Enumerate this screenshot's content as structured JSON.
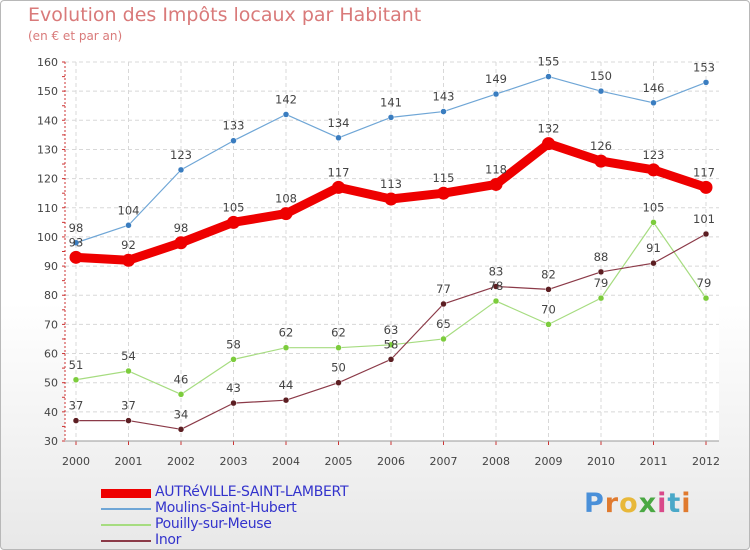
{
  "page": {
    "title": "Evolution des Impôts locaux par Habitant",
    "subtitle": "(en € et par an)"
  },
  "brand": {
    "letters": [
      {
        "char": "P",
        "color": "#4a90d9"
      },
      {
        "char": "r",
        "color": "#e07a2e"
      },
      {
        "char": "o",
        "color": "#e8b83a"
      },
      {
        "char": "x",
        "color": "#4aa843"
      },
      {
        "char": "i",
        "color": "#d94a8a"
      },
      {
        "char": "t",
        "color": "#4aa8c8"
      },
      {
        "char": "i",
        "color": "#e07a2e"
      }
    ]
  },
  "chart_data": {
    "type": "line",
    "x": [
      "2000",
      "2001",
      "2002",
      "2003",
      "2004",
      "2005",
      "2006",
      "2007",
      "2008",
      "2009",
      "2010",
      "2011",
      "2012"
    ],
    "ylim": [
      30,
      160
    ],
    "yticks": [
      "30",
      "40",
      "50",
      "60",
      "70",
      "80",
      "90",
      "100",
      "110",
      "120",
      "130",
      "140",
      "150",
      "160"
    ],
    "grid": true,
    "legend_position": "bottom-left",
    "series": [
      {
        "name": "AUTRéVILLE-SAINT-LAMBERT",
        "color": "#ee0000",
        "width": 9,
        "values": [
          93,
          92,
          98,
          105,
          108,
          117,
          113,
          115,
          118,
          132,
          126,
          123,
          117
        ]
      },
      {
        "name": "Moulins-Saint-Hubert",
        "color": "#6fa6d6",
        "marker": "#3a7dc0",
        "width": 1.2,
        "values": [
          98,
          104,
          123,
          133,
          142,
          134,
          141,
          143,
          149,
          155,
          150,
          146,
          153
        ]
      },
      {
        "name": "Pouilly-sur-Meuse",
        "color": "#a6dc80",
        "marker": "#7ccc3c",
        "width": 1.2,
        "values": [
          51,
          54,
          46,
          58,
          62,
          62,
          63,
          65,
          78,
          70,
          79,
          105,
          79
        ]
      },
      {
        "name": "Inor",
        "color": "#8b3a48",
        "marker": "#5c1e22",
        "width": 1.2,
        "values": [
          37,
          37,
          34,
          43,
          44,
          50,
          58,
          77,
          83,
          82,
          88,
          91,
          101
        ]
      }
    ]
  }
}
